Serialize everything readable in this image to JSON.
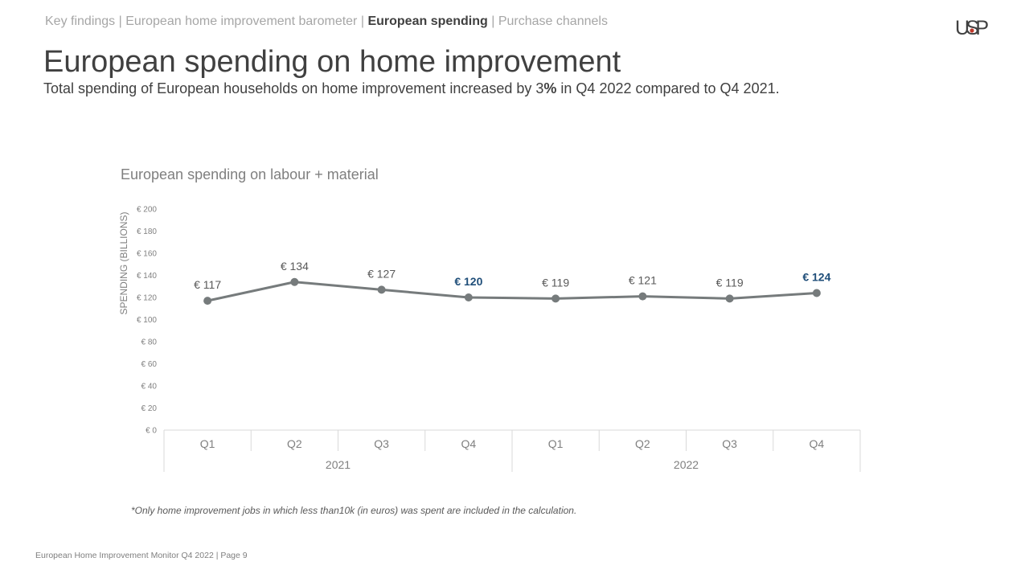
{
  "breadcrumb": {
    "items": [
      {
        "label": "Key findings",
        "active": false
      },
      {
        "label": "European home improvement barometer",
        "active": false
      },
      {
        "label": "European spending",
        "active": true
      },
      {
        "label": "Purchase channels",
        "active": false
      }
    ],
    "separator": "|"
  },
  "logo": {
    "text": "USP",
    "accent_color": "#c0392b"
  },
  "page": {
    "title": "European spending on home improvement",
    "subtitle_pre": "Total spending of European households on home improvement increased by 3",
    "subtitle_bold": "%",
    "subtitle_post": " in Q4 2022 compared to Q4 2021."
  },
  "chart_data": {
    "type": "line",
    "title": "European spending on labour + material",
    "ylabel": "SPENDING (BILLIONS)",
    "ylim": [
      0,
      200
    ],
    "yticks": [
      0,
      20,
      40,
      60,
      80,
      100,
      120,
      140,
      160,
      180,
      200
    ],
    "ytick_labels": [
      "€ 0",
      "€ 20",
      "€ 40",
      "€ 60",
      "€ 80",
      "€ 100",
      "€ 120",
      "€ 140",
      "€ 160",
      "€ 180",
      "€ 200"
    ],
    "categories": [
      "Q1",
      "Q2",
      "Q3",
      "Q4",
      "Q1",
      "Q2",
      "Q3",
      "Q4"
    ],
    "groups": [
      {
        "label": "2021",
        "count": 4
      },
      {
        "label": "2022",
        "count": 4
      }
    ],
    "series": [
      {
        "values": [
          117,
          134,
          127,
          120,
          119,
          121,
          119,
          124
        ],
        "data_labels": [
          "€ 117",
          "€ 134",
          "€ 127",
          "€ 120",
          "€ 119",
          "€ 121",
          "€ 119",
          "€ 124"
        ],
        "highlighted": [
          false,
          false,
          false,
          true,
          false,
          false,
          false,
          true
        ]
      }
    ],
    "colors": {
      "line": "#767b7c",
      "label": "#595959",
      "highlight": "#1f4e79",
      "axis": "#d9d9d9",
      "tick": "#808080"
    },
    "grid": false,
    "legend": "none"
  },
  "footnote": "*Only home improvement jobs in which less than10k (in euros) was spent are included in the calculation.",
  "footer": "European Home Improvement Monitor Q4 2022 | Page 9"
}
